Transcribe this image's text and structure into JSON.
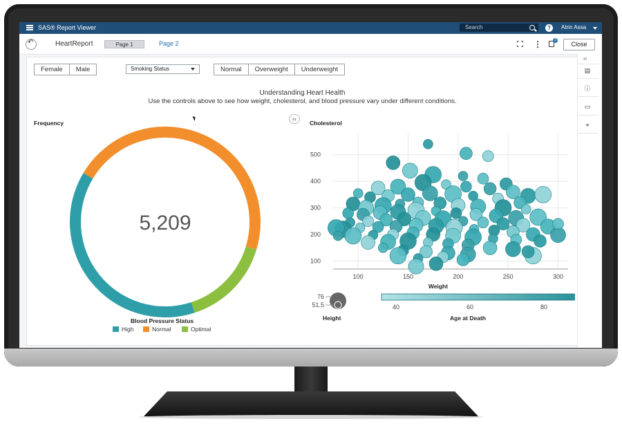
{
  "app": {
    "title": "SAS® Report Viewer",
    "search_placeholder": "Search",
    "user": "Atrin Assa"
  },
  "toolbar": {
    "report_name": "HeartReport",
    "tabs": [
      {
        "label": "Page 1",
        "active": true
      },
      {
        "label": "Page 2",
        "active": false
      }
    ],
    "close_label": "Close",
    "notes_count": "3"
  },
  "controls": {
    "sex_buttons": [
      "Female",
      "Male"
    ],
    "smoking_dropdown": "Smoking Status",
    "weight_buttons": [
      "Normal",
      "Overweight",
      "Underweight"
    ]
  },
  "header": {
    "title": "Understanding Heart Health",
    "subtitle": "Use the controls above to see how weight, cholesterol, and blood pressure vary under different conditions."
  },
  "donut": {
    "label": "Frequency",
    "total": "5,209",
    "legend_title": "Blood Pressure Status",
    "colors": {
      "High": "#2e9ea8",
      "Normal": "#f28e2b",
      "Optimal": "#8cbf3f"
    }
  },
  "scatter": {
    "label": "Cholesterol",
    "size_legend": {
      "title": "Height",
      "max": "76",
      "min": "51.5"
    },
    "color_legend": {
      "title": "Age at Death",
      "ticks": [
        "40",
        "60",
        "80"
      ],
      "low_color": "#b3e3e7",
      "high_color": "#1d8c94"
    }
  },
  "chart_data": [
    {
      "type": "pie",
      "title": "Frequency",
      "categories": [
        "High",
        "Normal",
        "Optimal"
      ],
      "values": [
        2011,
        2400,
        798
      ],
      "legend_title": "Blood Pressure Status",
      "center_label": "5,209"
    },
    {
      "type": "scatter",
      "title": "Cholesterol",
      "xlabel": "Weight",
      "ylabel": "Cholesterol",
      "xlim": [
        75,
        310
      ],
      "ylim": [
        70,
        580
      ],
      "xticks": [
        100,
        150,
        200,
        250,
        300
      ],
      "yticks": [
        100,
        200,
        300,
        400,
        500
      ],
      "points": [
        [
          170,
          540
        ],
        [
          230,
          495
        ],
        [
          208,
          505
        ],
        [
          135,
          470
        ],
        [
          152,
          440
        ],
        [
          175,
          425
        ],
        [
          205,
          420
        ],
        [
          225,
          410
        ],
        [
          248,
          390
        ],
        [
          120,
          375
        ],
        [
          140,
          380
        ],
        [
          165,
          395
        ],
        [
          188,
          388
        ],
        [
          208,
          380
        ],
        [
          232,
          372
        ],
        [
          255,
          360
        ],
        [
          270,
          345
        ],
        [
          285,
          350
        ],
        [
          100,
          355
        ],
        [
          112,
          340
        ],
        [
          130,
          345
        ],
        [
          150,
          350
        ],
        [
          172,
          355
        ],
        [
          195,
          352
        ],
        [
          215,
          345
        ],
        [
          240,
          335
        ],
        [
          262,
          320
        ],
        [
          95,
          315
        ],
        [
          108,
          300
        ],
        [
          125,
          308
        ],
        [
          142,
          315
        ],
        [
          160,
          320
        ],
        [
          182,
          318
        ],
        [
          200,
          310
        ],
        [
          220,
          305
        ],
        [
          245,
          300
        ],
        [
          268,
          295
        ],
        [
          90,
          280
        ],
        [
          105,
          275
        ],
        [
          122,
          282
        ],
        [
          140,
          285
        ],
        [
          158,
          290
        ],
        [
          178,
          288
        ],
        [
          198,
          280
        ],
        [
          218,
          275
        ],
        [
          238,
          270
        ],
        [
          258,
          262
        ],
        [
          280,
          265
        ],
        [
          92,
          245
        ],
        [
          110,
          250
        ],
        [
          128,
          255
        ],
        [
          146,
          258
        ],
        [
          165,
          262
        ],
        [
          185,
          258
        ],
        [
          205,
          250
        ],
        [
          225,
          245
        ],
        [
          245,
          240
        ],
        [
          265,
          235
        ],
        [
          290,
          230
        ],
        [
          85,
          220
        ],
        [
          102,
          225
        ],
        [
          120,
          228
        ],
        [
          138,
          230
        ],
        [
          158,
          235
        ],
        [
          178,
          232
        ],
        [
          196,
          226
        ],
        [
          216,
          220
        ],
        [
          236,
          215
        ],
        [
          255,
          210
        ],
        [
          275,
          200
        ],
        [
          300,
          198
        ],
        [
          95,
          195
        ],
        [
          115,
          198
        ],
        [
          135,
          200
        ],
        [
          155,
          205
        ],
        [
          175,
          200
        ],
        [
          195,
          195
        ],
        [
          215,
          190
        ],
        [
          235,
          185
        ],
        [
          258,
          180
        ],
        [
          282,
          175
        ],
        [
          110,
          170
        ],
        [
          130,
          172
        ],
        [
          150,
          175
        ],
        [
          170,
          170
        ],
        [
          190,
          165
        ],
        [
          210,
          160
        ],
        [
          232,
          150
        ],
        [
          255,
          145
        ],
        [
          275,
          120
        ],
        [
          125,
          150
        ],
        [
          145,
          140
        ],
        [
          168,
          135
        ],
        [
          190,
          130
        ],
        [
          210,
          125
        ],
        [
          140,
          120
        ],
        [
          160,
          110
        ],
        [
          185,
          115
        ],
        [
          205,
          105
        ],
        [
          178,
          90
        ],
        [
          158,
          80
        ],
        [
          78,
          225
        ],
        [
          80,
          195
        ],
        [
          300,
          240
        ],
        [
          270,
          135
        ]
      ]
    }
  ]
}
